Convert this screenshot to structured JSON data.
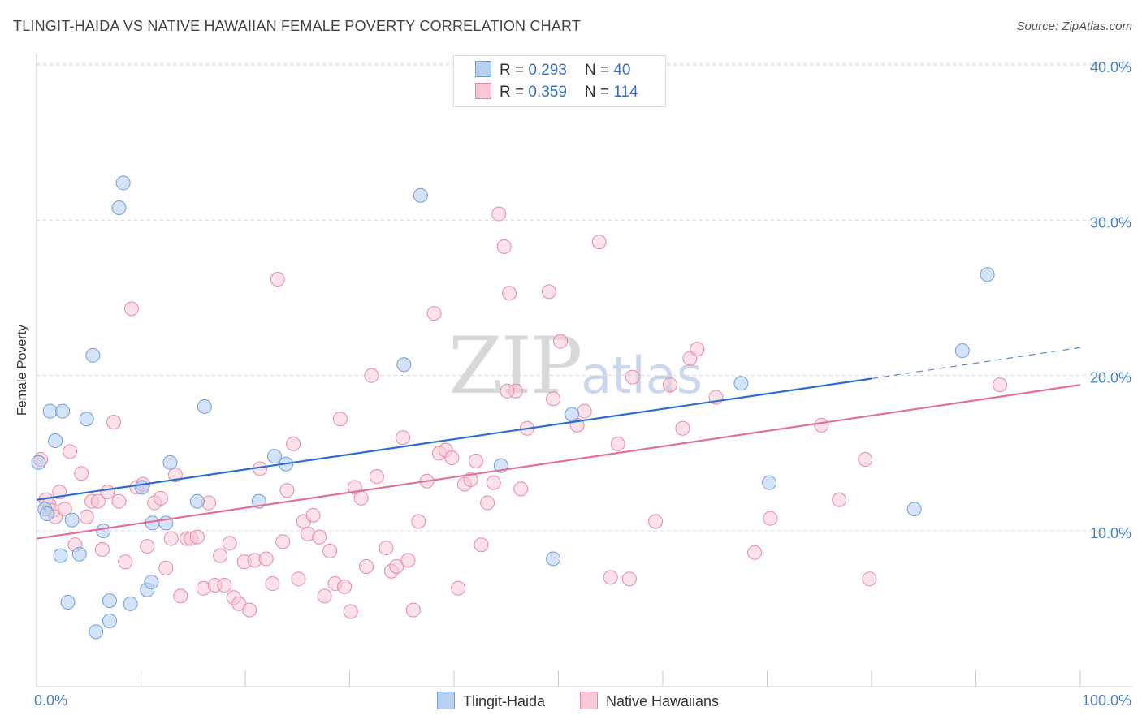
{
  "title": "TLINGIT-HAIDA VS NATIVE HAWAIIAN FEMALE POVERTY CORRELATION CHART",
  "source": "Source: ZipAtlas.com",
  "watermark": {
    "zip": "ZIP",
    "atlas": "atlas"
  },
  "legend": {
    "row1": {
      "r_label": "R = ",
      "r_value": "0.293",
      "n_label": "N = ",
      "n_value": "40"
    },
    "row2": {
      "r_label": "R = ",
      "r_value": "0.359",
      "n_label": "N = ",
      "n_value": "114"
    }
  },
  "bottom_legend": {
    "series1": "Tlingit-Haida",
    "series2": "Native Hawaiians"
  },
  "colors": {
    "blue_fill": "#b7d0f1",
    "blue_stroke": "#6f9fd9",
    "blue_line": "#2a6fd0",
    "pink_fill": "#f8c8d6",
    "pink_stroke": "#e58aa6",
    "pink_line": "#e0709a",
    "tick_text": "#4a7fc8",
    "grid": "#d8d8d8"
  },
  "chart_data": {
    "type": "scatter",
    "title": "TLINGIT-HAIDA VS NATIVE HAWAIIAN FEMALE POVERTY CORRELATION CHART",
    "xlabel": "",
    "ylabel": "Female Poverty",
    "xlim": [
      0,
      100
    ],
    "ylim": [
      0,
      42
    ],
    "x_tick_labels": [
      "0.0%",
      "100.0%"
    ],
    "y_ticks": [
      10,
      20,
      30,
      40
    ],
    "y_tick_labels": [
      "10.0%",
      "20.0%",
      "30.0%",
      "40.0%"
    ],
    "series": [
      {
        "name": "Tlingit-Haida",
        "r": 0.293,
        "n": 40,
        "trend": {
          "x0": 0,
          "y0": 12.0,
          "x1": 80,
          "y1": 19.8,
          "dash_to_x": 100,
          "dash_to_y": 21.8
        },
        "points": [
          [
            0.2,
            14.4
          ],
          [
            0.8,
            11.4
          ],
          [
            1.0,
            11.1
          ],
          [
            1.3,
            17.7
          ],
          [
            1.8,
            15.8
          ],
          [
            2.3,
            8.4
          ],
          [
            2.5,
            17.7
          ],
          [
            3.0,
            5.4
          ],
          [
            3.4,
            10.7
          ],
          [
            4.1,
            8.5
          ],
          [
            4.8,
            17.2
          ],
          [
            5.4,
            21.3
          ],
          [
            5.7,
            3.5
          ],
          [
            6.4,
            10.0
          ],
          [
            7.0,
            4.2
          ],
          [
            7.0,
            5.5
          ],
          [
            7.9,
            30.8
          ],
          [
            8.3,
            32.4
          ],
          [
            9.0,
            5.3
          ],
          [
            10.1,
            12.8
          ],
          [
            10.6,
            6.2
          ],
          [
            11.0,
            6.7
          ],
          [
            11.1,
            10.5
          ],
          [
            12.4,
            10.5
          ],
          [
            12.8,
            14.4
          ],
          [
            15.4,
            11.9
          ],
          [
            16.1,
            18.0
          ],
          [
            21.3,
            11.9
          ],
          [
            22.8,
            14.8
          ],
          [
            23.9,
            14.3
          ],
          [
            35.2,
            20.7
          ],
          [
            36.8,
            31.6
          ],
          [
            44.5,
            14.2
          ],
          [
            49.5,
            8.2
          ],
          [
            51.3,
            17.5
          ],
          [
            67.5,
            19.5
          ],
          [
            70.2,
            13.1
          ],
          [
            84.1,
            11.4
          ],
          [
            88.7,
            21.6
          ],
          [
            91.1,
            26.5
          ]
        ]
      },
      {
        "name": "Native Hawaiians",
        "r": 0.359,
        "n": 114,
        "trend": {
          "x0": 0,
          "y0": 9.5,
          "x1": 100,
          "y1": 19.4
        },
        "points": [
          [
            0.4,
            14.6
          ],
          [
            0.9,
            12.0
          ],
          [
            1.2,
            11.7
          ],
          [
            1.5,
            11.3
          ],
          [
            1.8,
            10.9
          ],
          [
            2.2,
            12.5
          ],
          [
            2.7,
            11.4
          ],
          [
            3.2,
            15.1
          ],
          [
            3.7,
            9.1
          ],
          [
            4.3,
            13.7
          ],
          [
            4.8,
            10.9
          ],
          [
            5.3,
            11.9
          ],
          [
            5.9,
            11.9
          ],
          [
            6.3,
            8.8
          ],
          [
            6.8,
            12.5
          ],
          [
            7.4,
            17.0
          ],
          [
            7.9,
            11.9
          ],
          [
            8.5,
            8.0
          ],
          [
            9.1,
            24.3
          ],
          [
            9.6,
            12.8
          ],
          [
            10.2,
            13.0
          ],
          [
            10.6,
            9.0
          ],
          [
            11.3,
            11.8
          ],
          [
            11.9,
            12.1
          ],
          [
            12.4,
            7.6
          ],
          [
            12.9,
            9.5
          ],
          [
            13.3,
            13.6
          ],
          [
            13.8,
            5.8
          ],
          [
            14.4,
            9.5
          ],
          [
            14.8,
            9.5
          ],
          [
            15.4,
            9.6
          ],
          [
            16.0,
            6.3
          ],
          [
            16.5,
            11.8
          ],
          [
            17.1,
            6.5
          ],
          [
            17.6,
            8.4
          ],
          [
            18.0,
            6.5
          ],
          [
            18.5,
            9.2
          ],
          [
            18.9,
            5.7
          ],
          [
            19.4,
            5.3
          ],
          [
            19.9,
            8.0
          ],
          [
            20.4,
            4.9
          ],
          [
            20.9,
            8.1
          ],
          [
            21.4,
            14.0
          ],
          [
            22.0,
            8.2
          ],
          [
            22.6,
            6.6
          ],
          [
            23.1,
            26.2
          ],
          [
            23.6,
            9.3
          ],
          [
            24.0,
            12.6
          ],
          [
            24.6,
            15.6
          ],
          [
            25.1,
            6.9
          ],
          [
            25.6,
            10.6
          ],
          [
            26.0,
            9.8
          ],
          [
            26.5,
            11.0
          ],
          [
            27.1,
            9.6
          ],
          [
            27.6,
            5.8
          ],
          [
            28.1,
            8.7
          ],
          [
            28.6,
            6.6
          ],
          [
            29.1,
            17.2
          ],
          [
            29.5,
            6.4
          ],
          [
            30.1,
            4.8
          ],
          [
            30.5,
            12.8
          ],
          [
            31.1,
            12.1
          ],
          [
            31.6,
            7.7
          ],
          [
            32.1,
            20.0
          ],
          [
            32.6,
            13.5
          ],
          [
            33.5,
            8.9
          ],
          [
            34.0,
            7.4
          ],
          [
            34.5,
            7.7
          ],
          [
            35.1,
            16.0
          ],
          [
            35.6,
            8.1
          ],
          [
            36.1,
            4.9
          ],
          [
            36.6,
            10.6
          ],
          [
            37.4,
            13.2
          ],
          [
            38.1,
            24.0
          ],
          [
            38.6,
            15.0
          ],
          [
            39.2,
            15.2
          ],
          [
            39.8,
            14.7
          ],
          [
            40.4,
            6.3
          ],
          [
            41.0,
            13.0
          ],
          [
            41.6,
            13.3
          ],
          [
            42.1,
            14.5
          ],
          [
            42.6,
            9.1
          ],
          [
            43.2,
            11.8
          ],
          [
            43.8,
            13.1
          ],
          [
            44.3,
            30.4
          ],
          [
            44.8,
            28.3
          ],
          [
            45.3,
            25.3
          ],
          [
            45.9,
            19.0
          ],
          [
            46.4,
            12.7
          ],
          [
            47.0,
            16.6
          ],
          [
            49.1,
            25.4
          ],
          [
            49.5,
            18.5
          ],
          [
            50.2,
            22.2
          ],
          [
            51.8,
            16.8
          ],
          [
            52.5,
            17.7
          ],
          [
            53.9,
            28.6
          ],
          [
            55.0,
            7.0
          ],
          [
            55.7,
            15.6
          ],
          [
            56.8,
            6.9
          ],
          [
            57.1,
            19.9
          ],
          [
            59.3,
            10.6
          ],
          [
            60.7,
            19.4
          ],
          [
            61.9,
            16.6
          ],
          [
            62.6,
            21.1
          ],
          [
            63.3,
            21.7
          ],
          [
            65.1,
            18.6
          ],
          [
            68.8,
            8.6
          ],
          [
            70.3,
            10.8
          ],
          [
            75.2,
            16.8
          ],
          [
            76.9,
            12.0
          ],
          [
            79.4,
            14.6
          ],
          [
            79.8,
            6.9
          ],
          [
            92.3,
            19.4
          ],
          [
            45.1,
            19.0
          ]
        ]
      }
    ]
  }
}
